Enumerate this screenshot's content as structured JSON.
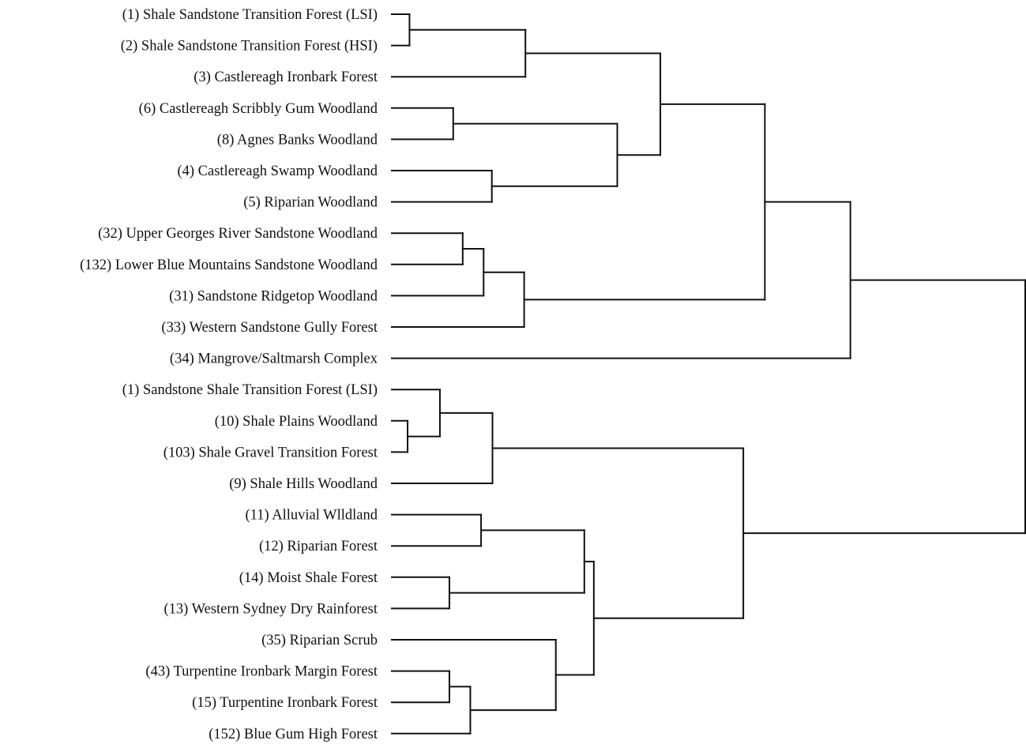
{
  "chart_data": {
    "type": "dendrogram",
    "title": "",
    "xlabel": "",
    "ylabel": "",
    "orientation": "leaves-left",
    "leaves": [
      "(1) Shale Sandstone Transition Forest (LSI)",
      "(2) Shale Sandstone Transition Forest (HSI)",
      "(3) Castlereagh Ironbark Forest",
      "(6) Castlereagh Scribbly Gum Woodland",
      "(8) Agnes Banks Woodland",
      "(4) Castlereagh Swamp Woodland",
      "(5) Riparian Woodland",
      "(32) Upper Georges River Sandstone Woodland",
      "(132) Lower Blue Mountains Sandstone Woodland",
      "(31) Sandstone Ridgetop Woodland",
      "(33) Western Sandstone Gully Forest",
      "(34) Mangrove/Saltmarsh Complex",
      "(1) Sandstone Shale Transition Forest (LSI)",
      "(10) Shale Plains Woodland",
      "(103) Shale Gravel Transition Forest",
      "(9) Shale Hills Woodland",
      "(11) Alluvial Wlldland",
      "(12) Riparian Forest",
      "(14) Moist Shale Forest",
      "(13) Western Sydney Dry Rainforest",
      "(35) Riparian Scrub",
      "(43) Turpentine Ironbark Margin Forest",
      "(15) Turpentine Ironbark Forest",
      "(152) Blue Gum High Forest"
    ],
    "merges": [
      {
        "a": "L0",
        "b": "L1",
        "height": 0.028
      },
      {
        "a": "M0",
        "b": "L2",
        "height": 0.211
      },
      {
        "a": "L3",
        "b": "L4",
        "height": 0.097
      },
      {
        "a": "L5",
        "b": "L6",
        "height": 0.158
      },
      {
        "a": "M2",
        "b": "M3",
        "height": 0.356
      },
      {
        "a": "M1",
        "b": "M4",
        "height": 0.424
      },
      {
        "a": "L7",
        "b": "L8",
        "height": 0.112
      },
      {
        "a": "M6",
        "b": "L9",
        "height": 0.145
      },
      {
        "a": "M7",
        "b": "L10",
        "height": 0.209
      },
      {
        "a": "M5",
        "b": "M8",
        "height": 0.589
      },
      {
        "a": "M9",
        "b": "L11",
        "height": 0.724
      },
      {
        "a": "L13",
        "b": "L14",
        "height": 0.025
      },
      {
        "a": "L12",
        "b": "M11",
        "height": 0.076
      },
      {
        "a": "M12",
        "b": "L15",
        "height": 0.159
      },
      {
        "a": "L16",
        "b": "L17",
        "height": 0.141
      },
      {
        "a": "L18",
        "b": "L19",
        "height": 0.091
      },
      {
        "a": "M14",
        "b": "M15",
        "height": 0.304
      },
      {
        "a": "L21",
        "b": "L22",
        "height": 0.091
      },
      {
        "a": "M17",
        "b": "L23",
        "height": 0.124
      },
      {
        "a": "L20",
        "b": "M18",
        "height": 0.259
      },
      {
        "a": "M16",
        "b": "M19",
        "height": 0.319
      },
      {
        "a": "M13",
        "b": "M20",
        "height": 0.555
      },
      {
        "a": "M10",
        "b": "M21",
        "height": 1.0
      }
    ]
  }
}
